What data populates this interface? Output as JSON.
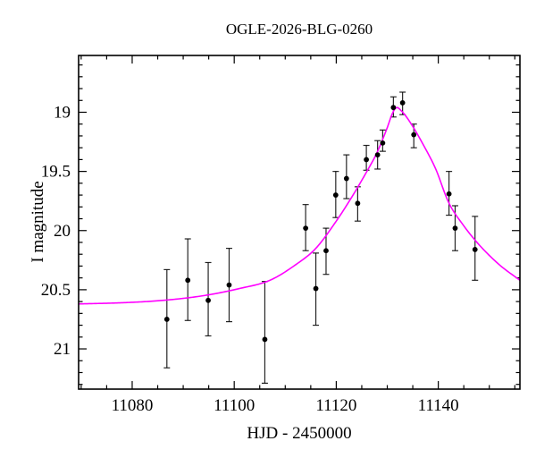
{
  "figure": {
    "title": "OGLE-2026-BLG-0260",
    "xlabel": "HJD - 2450000",
    "ylabel": "I magnitude"
  },
  "chart_data": {
    "type": "scatter",
    "title": "OGLE-2026-BLG-0260",
    "xlabel": "HJD - 2450000",
    "ylabel": "I magnitude",
    "grid": false,
    "legend": null,
    "x_axis": {
      "min": 11069.5,
      "max": 11156.0,
      "major_ticks": [
        11080,
        11100,
        11120,
        11140
      ],
      "tick_labels": [
        "11080",
        "11100",
        "11120",
        "11140"
      ],
      "minor_step": 5
    },
    "y_axis": {
      "inverted": true,
      "top_mag": 18.52,
      "bottom_mag": 21.34,
      "major_ticks": [
        19,
        19.5,
        20,
        20.5,
        21
      ],
      "tick_labels": [
        "19",
        "19.5",
        "20",
        "20.5",
        "21"
      ],
      "minor_step": 0.1
    },
    "observations": {
      "color": "#000000",
      "points": [
        {
          "t": 11086.8,
          "mag": 20.75,
          "err_up": 0.42,
          "err_down": 0.41
        },
        {
          "t": 11090.9,
          "mag": 20.42,
          "err_up": 0.35,
          "err_down": 0.34
        },
        {
          "t": 11094.9,
          "mag": 20.59,
          "err_up": 0.32,
          "err_down": 0.3
        },
        {
          "t": 11099.0,
          "mag": 20.46,
          "err_up": 0.31,
          "err_down": 0.31
        },
        {
          "t": 11106.0,
          "mag": 20.92,
          "err_up": 0.49,
          "err_down": 0.37
        },
        {
          "t": 11114.0,
          "mag": 19.98,
          "err_up": 0.2,
          "err_down": 0.19
        },
        {
          "t": 11116.0,
          "mag": 20.49,
          "err_up": 0.3,
          "err_down": 0.31
        },
        {
          "t": 11118.0,
          "mag": 20.17,
          "err_up": 0.19,
          "err_down": 0.2
        },
        {
          "t": 11119.9,
          "mag": 19.7,
          "err_up": 0.2,
          "err_down": 0.19
        },
        {
          "t": 11122.0,
          "mag": 19.56,
          "err_up": 0.2,
          "err_down": 0.17
        },
        {
          "t": 11124.2,
          "mag": 19.77,
          "err_up": 0.14,
          "err_down": 0.15
        },
        {
          "t": 11125.9,
          "mag": 19.4,
          "err_up": 0.12,
          "err_down": 0.09
        },
        {
          "t": 11128.1,
          "mag": 19.36,
          "err_up": 0.12,
          "err_down": 0.12
        },
        {
          "t": 11129.1,
          "mag": 19.26,
          "err_up": 0.11,
          "err_down": 0.07
        },
        {
          "t": 11131.2,
          "mag": 18.96,
          "err_up": 0.09,
          "err_down": 0.08
        },
        {
          "t": 11133.0,
          "mag": 18.92,
          "err_up": 0.09,
          "err_down": 0.1
        },
        {
          "t": 11135.2,
          "mag": 19.19,
          "err_up": 0.09,
          "err_down": 0.11
        },
        {
          "t": 11142.1,
          "mag": 19.69,
          "err_up": 0.19,
          "err_down": 0.18
        },
        {
          "t": 11143.3,
          "mag": 19.98,
          "err_up": 0.19,
          "err_down": 0.19
        },
        {
          "t": 11147.2,
          "mag": 20.16,
          "err_up": 0.28,
          "err_down": 0.26
        }
      ]
    },
    "model_curve": {
      "color": "#ff00ff",
      "samples": [
        [
          11069.5,
          20.62
        ],
        [
          11078.0,
          20.61
        ],
        [
          11086.0,
          20.59
        ],
        [
          11094.0,
          20.55
        ],
        [
          11101.0,
          20.49
        ],
        [
          11107.0,
          20.42
        ],
        [
          11112.0,
          20.29
        ],
        [
          11116.0,
          20.15
        ],
        [
          11120.0,
          19.92
        ],
        [
          11123.0,
          19.72
        ],
        [
          11126.0,
          19.5
        ],
        [
          11128.0,
          19.34
        ],
        [
          11130.0,
          19.13
        ],
        [
          11131.0,
          19.01
        ],
        [
          11131.8,
          18.96
        ],
        [
          11132.8,
          18.99
        ],
        [
          11133.6,
          19.03
        ],
        [
          11135.0,
          19.12
        ],
        [
          11137.0,
          19.27
        ],
        [
          11139.5,
          19.48
        ],
        [
          11142.0,
          19.76
        ],
        [
          11145.0,
          19.96
        ],
        [
          11148.0,
          20.12
        ],
        [
          11152.0,
          20.29
        ],
        [
          11156.0,
          20.42
        ]
      ]
    }
  },
  "style": {
    "curve_color": "#ff00ff",
    "data_color": "#000000",
    "axis_color": "#000000",
    "background": "#ffffff"
  }
}
